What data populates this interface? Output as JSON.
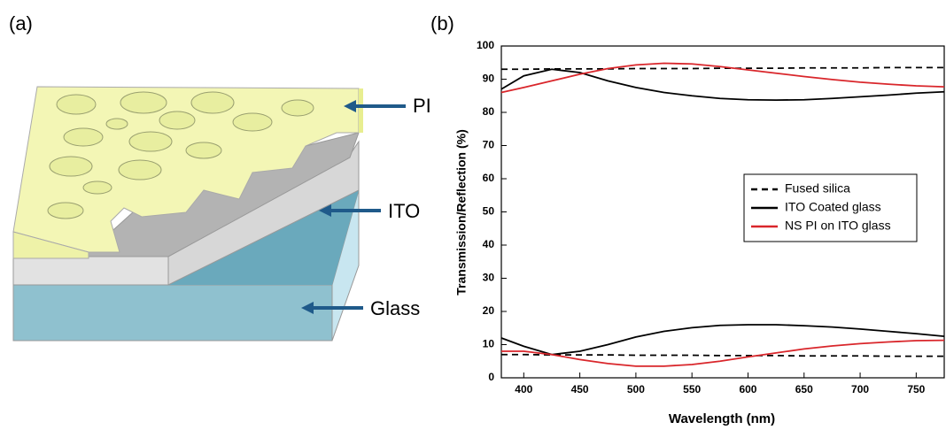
{
  "figure_a": {
    "label": "(a)",
    "layers": [
      "PI",
      "ITO",
      "Glass"
    ]
  },
  "chart_data": {
    "type": "line",
    "panel_label": "(b)",
    "xlabel": "Wavelength (nm)",
    "ylabel": "Transmission/Reflection (%)",
    "x": [
      380,
      400,
      425,
      450,
      475,
      500,
      525,
      550,
      575,
      600,
      625,
      650,
      675,
      700,
      725,
      750,
      775
    ],
    "xlim": [
      380,
      775
    ],
    "xticks": [
      400,
      450,
      500,
      550,
      600,
      650,
      700,
      750
    ],
    "ylim": [
      0,
      100
    ],
    "yticks": [
      0,
      10,
      20,
      30,
      40,
      50,
      60,
      70,
      80,
      90,
      100
    ],
    "series": [
      {
        "name": "Fused silica",
        "color": "#000000",
        "dashed": true,
        "values": [
          93.0,
          93.0,
          93.1,
          93.1,
          93.1,
          93.2,
          93.2,
          93.2,
          93.3,
          93.3,
          93.3,
          93.4,
          93.4,
          93.4,
          93.5,
          93.5,
          93.5
        ],
        "reflection": [
          7.0,
          7.0,
          6.9,
          6.9,
          6.9,
          6.8,
          6.8,
          6.8,
          6.7,
          6.7,
          6.7,
          6.6,
          6.6,
          6.6,
          6.5,
          6.5,
          6.5
        ]
      },
      {
        "name": "ITO Coated glass",
        "color": "#000000",
        "dashed": false,
        "values": [
          87,
          91,
          93,
          92,
          89.5,
          87.5,
          86,
          85,
          84.2,
          83.8,
          83.7,
          83.8,
          84.2,
          84.7,
          85.2,
          85.8,
          86.2
        ],
        "reflection": [
          12,
          9.5,
          7,
          8,
          10,
          12.3,
          14,
          15.1,
          15.8,
          16,
          16,
          15.7,
          15.3,
          14.7,
          14,
          13.3,
          12.5
        ]
      },
      {
        "name": "NS PI on ITO glass",
        "color": "#d9262b",
        "dashed": false,
        "values": [
          86,
          87.5,
          89.5,
          91.5,
          93.2,
          94.3,
          94.8,
          94.6,
          93.8,
          92.8,
          91.8,
          90.8,
          89.9,
          89.1,
          88.5,
          88,
          87.7
        ],
        "reflection": [
          8,
          8,
          7,
          5.5,
          4.3,
          3.5,
          3.5,
          4,
          5,
          6.3,
          7.5,
          8.7,
          9.6,
          10.3,
          10.8,
          11.2,
          11.3
        ]
      }
    ]
  }
}
